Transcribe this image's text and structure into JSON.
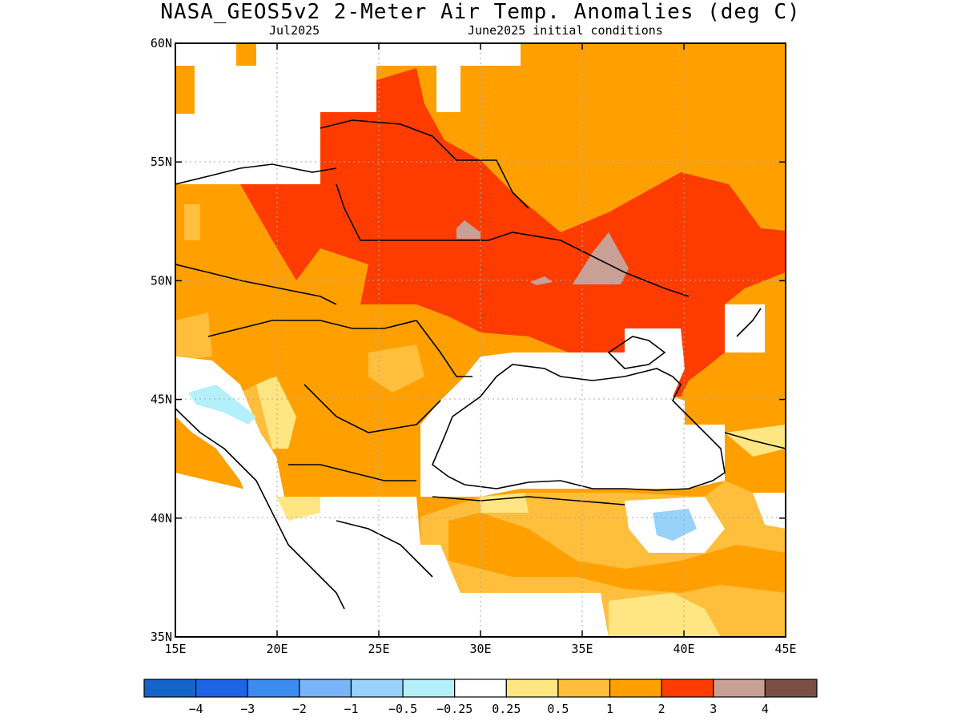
{
  "title": "NASA_GEOS5v2 2-Meter Air Temp. Anomalies (deg C)",
  "subtitle_left": "Jul2025",
  "subtitle_right": "June2025 initial conditions",
  "map": {
    "lon_range": [
      15,
      45
    ],
    "lat_range": [
      35,
      60
    ],
    "lon_ticks": [
      "15E",
      "20E",
      "25E",
      "30E",
      "35E",
      "40E",
      "45E"
    ],
    "lat_ticks": [
      "60N",
      "55N",
      "50N",
      "45N",
      "40N",
      "35N"
    ]
  },
  "colorbar": {
    "colors": [
      "#1565c8",
      "#1e64e6",
      "#3c8cf0",
      "#78b4f8",
      "#96d2fa",
      "#b4f0fa",
      "#ffffff",
      "#ffe682",
      "#ffbe3c",
      "#ffa000",
      "#ff3c00",
      "#c8a096",
      "#7a5046"
    ],
    "labels": [
      "−4",
      "−3",
      "−2",
      "−1",
      "−0.5",
      "−0.25",
      "0.25",
      "0.5",
      "1",
      "2",
      "3",
      "4"
    ]
  }
}
